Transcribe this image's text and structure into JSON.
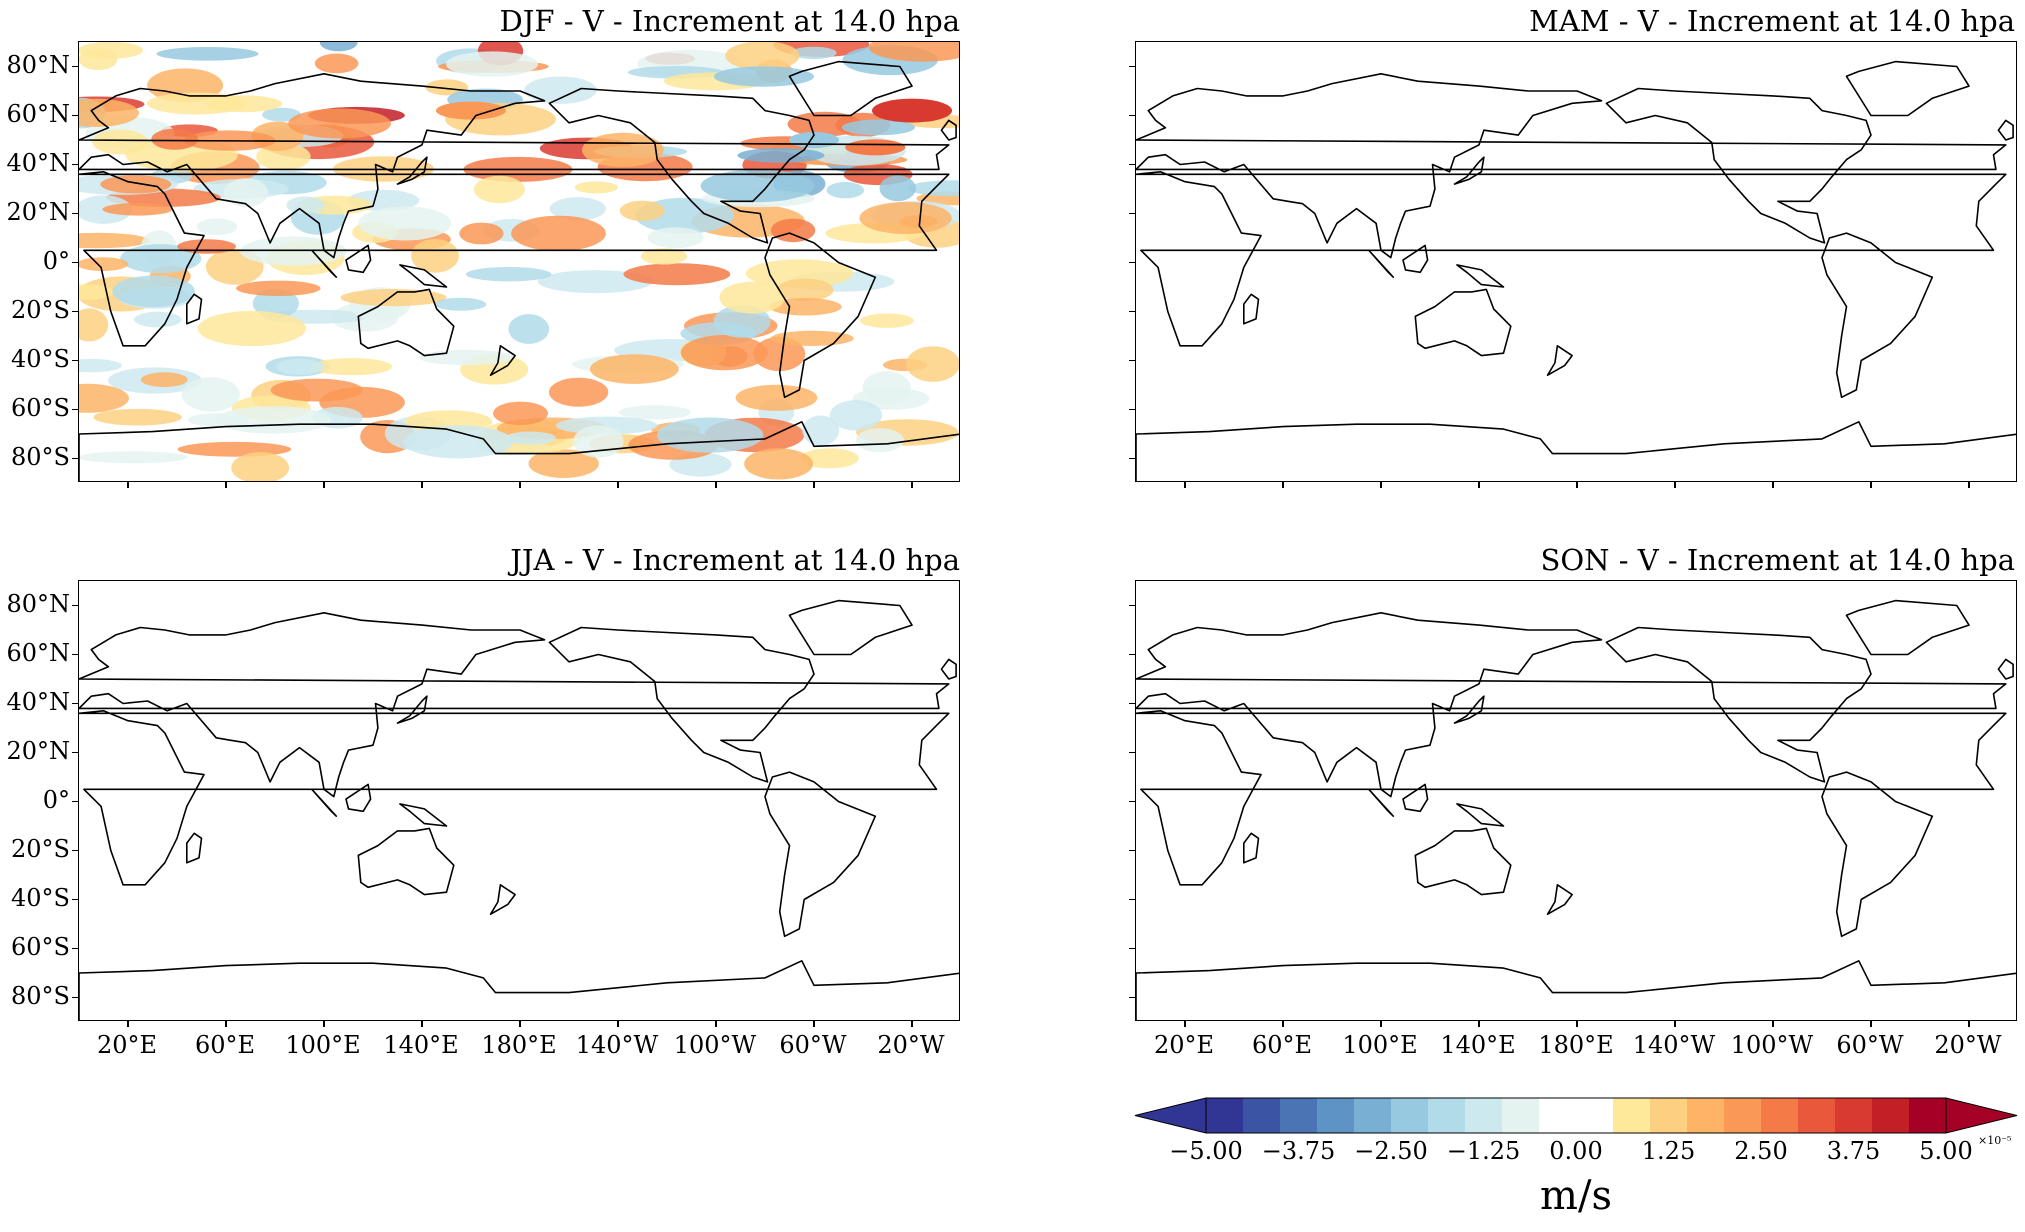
{
  "panels": [
    {
      "id": "djf",
      "title": "DJF - V - Increment at 14.0 hpa",
      "has_field": true
    },
    {
      "id": "mam",
      "title": "MAM - V - Increment at 14.0 hpa",
      "has_field": false
    },
    {
      "id": "jja",
      "title": "JJA - V - Increment at 14.0 hpa",
      "has_field": false
    },
    {
      "id": "son",
      "title": "SON - V - Increment at 14.0 hpa",
      "has_field": false
    }
  ],
  "lat_ticks": [
    "80°N",
    "60°N",
    "40°N",
    "20°N",
    "0°",
    "20°S",
    "40°S",
    "60°S",
    "80°S"
  ],
  "lon_ticks": [
    "20°E",
    "60°E",
    "100°E",
    "140°E",
    "180°E",
    "140°W",
    "100°W",
    "60°W",
    "20°W"
  ],
  "colorbar": {
    "ticks": [
      "−5.00",
      "−3.75",
      "−2.50",
      "−1.25",
      "0.00",
      "1.25",
      "2.50",
      "3.75",
      "5.00"
    ],
    "unit": "m/s",
    "exponent": "×10⁻⁵",
    "colors": [
      "#313695",
      "#3b54a4",
      "#4a74b4",
      "#5e93c5",
      "#7aafd4",
      "#97c9e1",
      "#b2dbea",
      "#cce9f0",
      "#e4f3f0",
      "#ffffff",
      "#ffffff",
      "#fee89a",
      "#fdd081",
      "#fdb466",
      "#fa9856",
      "#f47a48",
      "#e9583b",
      "#d93a2f",
      "#c21f27",
      "#a50026"
    ],
    "under_color": "#313695",
    "over_color": "#a50026",
    "vmin": -5.0,
    "vmax": 5.0
  }
}
